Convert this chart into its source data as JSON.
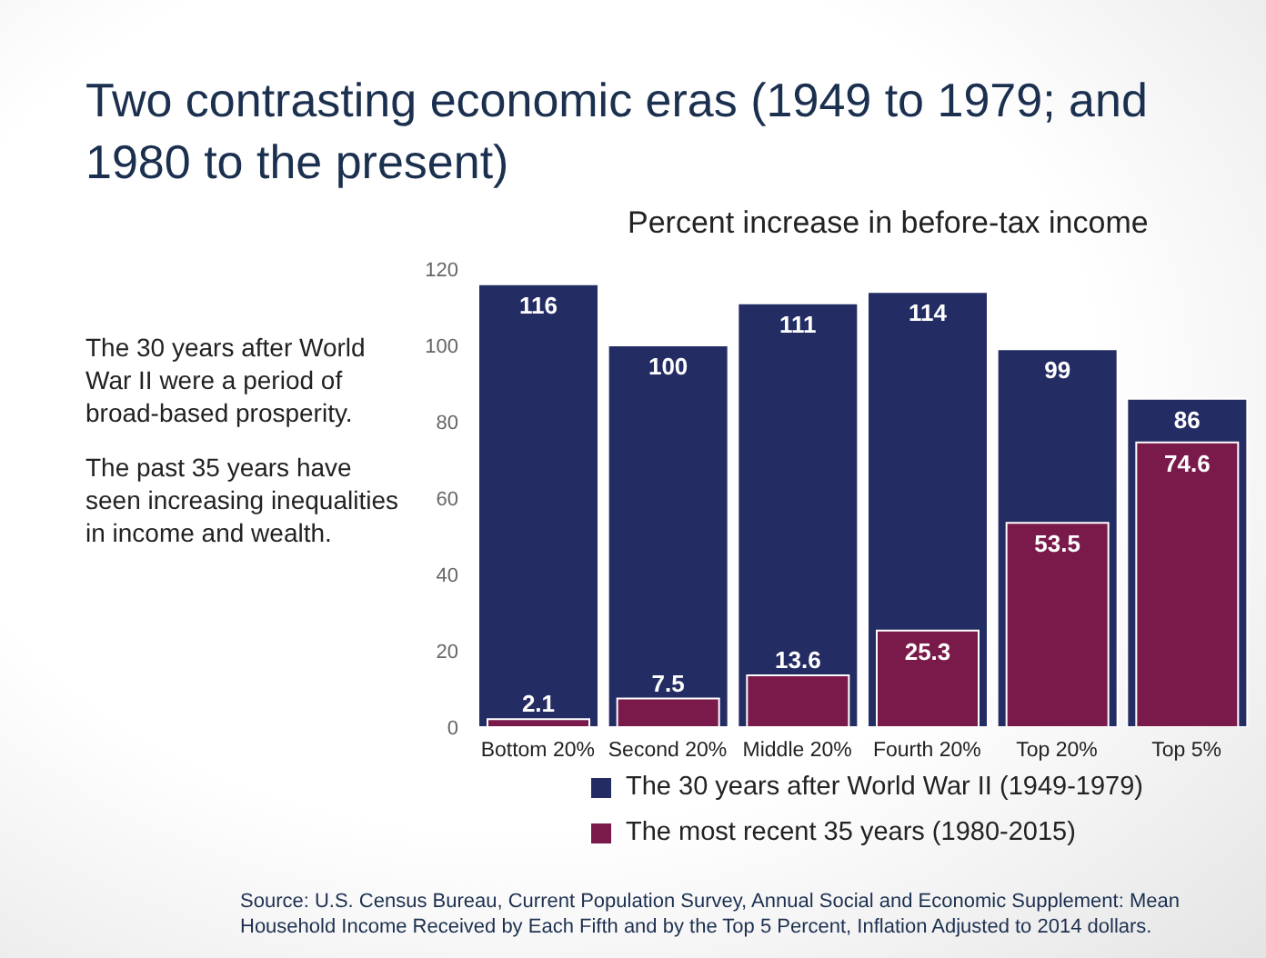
{
  "chart_data": {
    "type": "bar",
    "title": "Two contrasting economic eras (1949 to 1979; and 1980 to the present)",
    "subtitle": "Percent increase in before-tax income",
    "categories": [
      "Bottom 20%",
      "Second 20%",
      "Middle 20%",
      "Fourth 20%",
      "Top 20%",
      "Top 5%"
    ],
    "series": [
      {
        "name": "The 30 years after World War II (1949-1979)",
        "color": "#232c63",
        "values": [
          116,
          100,
          111,
          114,
          99,
          86
        ]
      },
      {
        "name": "The most recent 35 years (1980-2015)",
        "color": "#7a1a4b",
        "values": [
          2.1,
          7.5,
          13.6,
          25.3,
          53.5,
          74.6
        ]
      }
    ],
    "ylim": [
      0,
      120
    ],
    "yticks": [
      0,
      20,
      40,
      60,
      80,
      100,
      120
    ],
    "grid": false,
    "legend": "bottom",
    "data_labels": true,
    "annotations": [
      "The 30 years after World War II were a period of broad-based prosperity.",
      "The past 35 years have seen increasing inequalities in income and wealth.",
      "Source: U.S. Census Bureau, Current Population Survey, Annual Social and Economic Supplement: Mean Household Income Received by Each Fifth and by the Top 5 Percent, Inflation Adjusted to 2014 dollars."
    ]
  }
}
